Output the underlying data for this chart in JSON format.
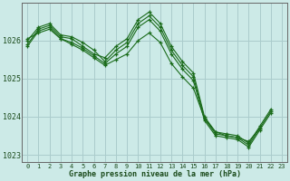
{
  "title": "Graphe pression niveau de la mer (hPa)",
  "background_color": "#cceae7",
  "grid_color": "#aacccc",
  "line_color": "#1a6b1a",
  "marker_color": "#1a6b1a",
  "tick_color": "#1a4a1a",
  "ylim": [
    1022.8,
    1027.0
  ],
  "xlim": [
    -0.5,
    23.5
  ],
  "yticks": [
    1023,
    1024,
    1025,
    1026
  ],
  "xticks": [
    0,
    1,
    2,
    3,
    4,
    5,
    6,
    7,
    8,
    9,
    10,
    11,
    12,
    13,
    14,
    15,
    16,
    17,
    18,
    19,
    20,
    21,
    22,
    23
  ],
  "series": [
    [
      1025.9,
      1026.3,
      1026.4,
      1026.1,
      1026.05,
      1025.85,
      1025.65,
      1025.55,
      1025.85,
      1026.05,
      1026.55,
      1026.75,
      1026.45,
      1025.85,
      1025.45,
      1025.15,
      1024.0,
      1023.6,
      1023.55,
      1023.5,
      1023.3,
      1023.75,
      1024.2,
      null
    ],
    [
      1026.0,
      1026.35,
      1026.45,
      1026.15,
      1026.1,
      1025.95,
      1025.75,
      1025.45,
      1025.75,
      1025.95,
      1026.45,
      1026.65,
      1026.35,
      1025.75,
      1025.35,
      1025.05,
      1023.95,
      1023.55,
      1023.5,
      1023.45,
      1023.25,
      1023.7,
      null,
      null
    ],
    [
      1025.85,
      1026.25,
      1026.35,
      1026.05,
      1025.95,
      1025.8,
      1025.6,
      1025.4,
      1025.65,
      1025.85,
      1026.35,
      1026.55,
      1026.25,
      1025.65,
      1025.25,
      1024.95,
      1023.9,
      1023.5,
      1023.45,
      1023.4,
      1023.2,
      1023.65,
      1024.1,
      null
    ],
    [
      1026.05,
      1026.2,
      1026.3,
      1026.05,
      1025.9,
      1025.75,
      1025.55,
      1025.35,
      1025.5,
      1025.65,
      1026.0,
      1026.2,
      1025.95,
      1025.4,
      1025.05,
      1024.75,
      1023.95,
      1023.6,
      1023.5,
      1023.45,
      1023.35,
      1023.7,
      1024.15,
      null
    ]
  ]
}
